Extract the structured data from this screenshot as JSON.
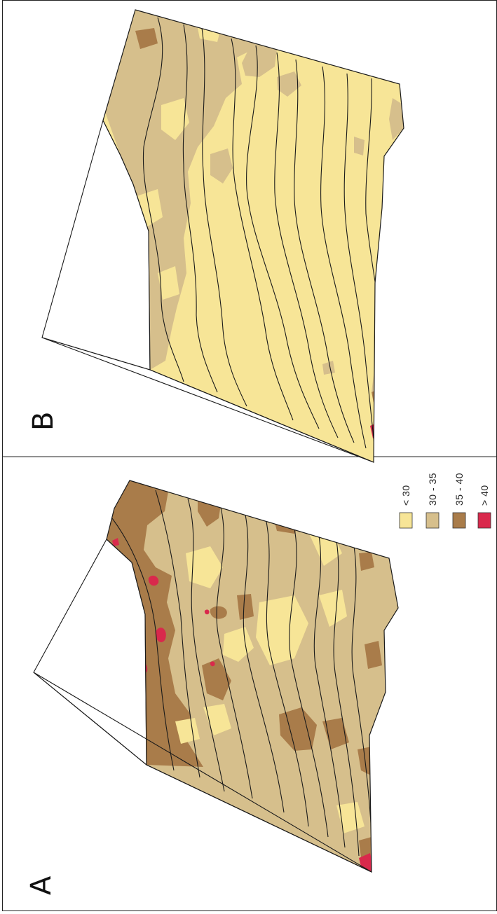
{
  "panels": [
    {
      "label": "A"
    },
    {
      "label": "B"
    }
  ],
  "legend": {
    "items": [
      {
        "label": "< 30",
        "color": "#f7e597"
      },
      {
        "label": "30 - 35",
        "color": "#d6bf8c"
      },
      {
        "label": "35 - 40",
        "color": "#a97c4a"
      },
      {
        "label": "> 40",
        "color": "#d9294c"
      }
    ]
  },
  "colors": {
    "low": "#f7e597",
    "mid": "#d6bf8c",
    "high": "#a97c4a",
    "very_high": "#d9294c",
    "contour": "#1a1a1a"
  }
}
